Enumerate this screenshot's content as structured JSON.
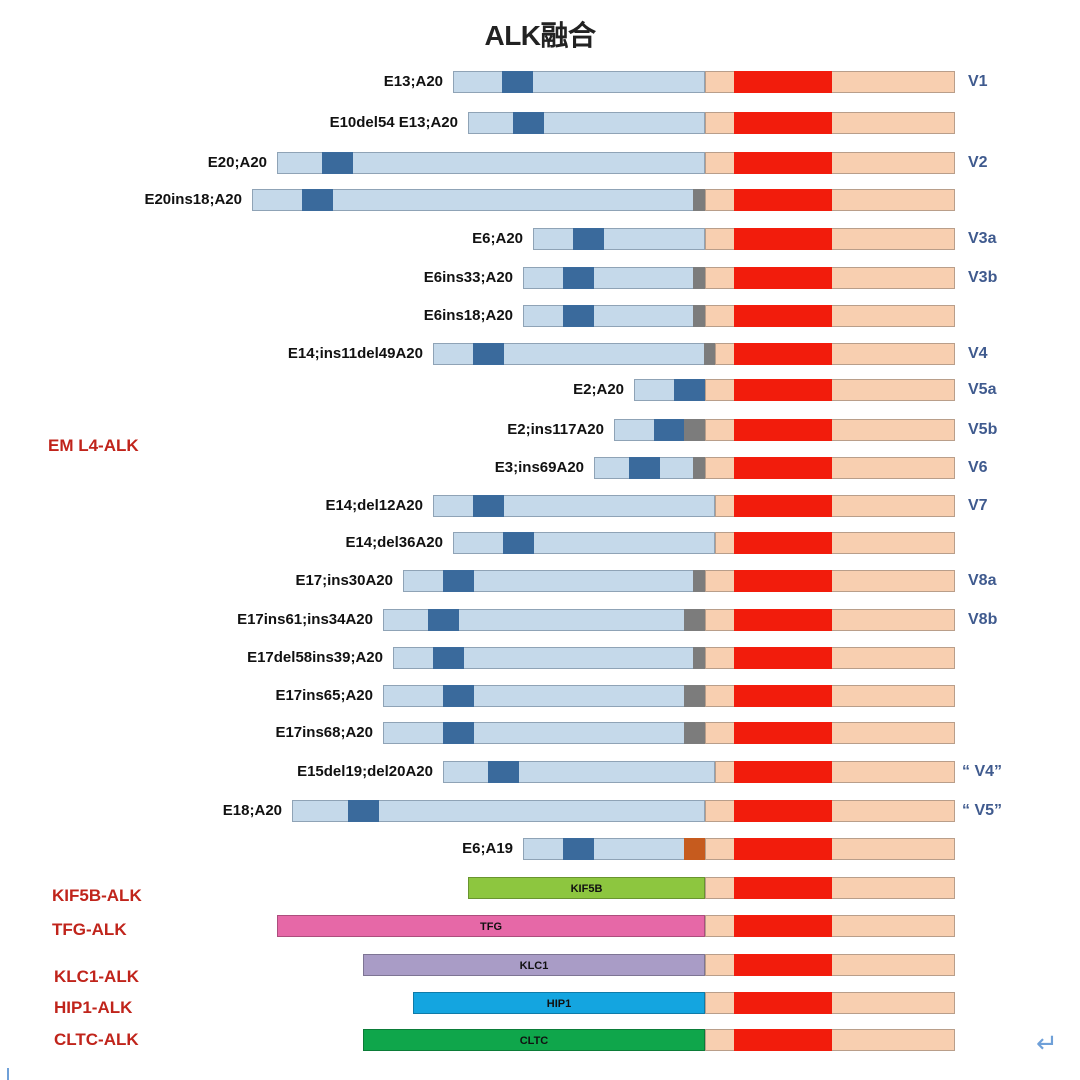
{
  "title": "ALK融合",
  "group_labels": [
    "EM L4-ALK",
    "KIF5B-ALK",
    "TFG-ALK",
    "KLC1-ALK",
    "HIP1-ALK",
    "CLTC-ALK"
  ],
  "eml4_rows": [
    {
      "label": "E13;A20",
      "variant": "V1"
    },
    {
      "label": "E10del54 E13;A20",
      "variant": ""
    },
    {
      "label": "E20;A20",
      "variant": "V2"
    },
    {
      "label": "E20ins18;A20",
      "variant": ""
    },
    {
      "label": "E6;A20",
      "variant": "V3a"
    },
    {
      "label": "E6ins33;A20",
      "variant": "V3b"
    },
    {
      "label": "E6ins18;A20",
      "variant": ""
    },
    {
      "label": "E14;ins11del49A20",
      "variant": "V4"
    },
    {
      "label": "E2;A20",
      "variant": "V5a"
    },
    {
      "label": "E2;ins117A20",
      "variant": "V5b"
    },
    {
      "label": "E3;ins69A20",
      "variant": "V6"
    },
    {
      "label": "E14;del12A20",
      "variant": "V7"
    },
    {
      "label": "E14;del36A20",
      "variant": ""
    },
    {
      "label": "E17;ins30A20",
      "variant": "V8a"
    },
    {
      "label": "E17ins61;ins34A20",
      "variant": "V8b"
    },
    {
      "label": "E17del58ins39;A20",
      "variant": ""
    },
    {
      "label": "E17ins65;A20",
      "variant": ""
    },
    {
      "label": "E17ins68;A20",
      "variant": ""
    },
    {
      "label": "E15del19;del20A20",
      "variant": "“ V4”"
    },
    {
      "label": "E18;A20",
      "variant": "“ V5”"
    },
    {
      "label": "E6;A19",
      "variant": ""
    }
  ],
  "partner_rows": [
    {
      "name": "KIF5B",
      "color": "#8dc63f"
    },
    {
      "name": "TFG",
      "color": "#e668a7"
    },
    {
      "name": "KLC1",
      "color": "#a99cc6"
    },
    {
      "name": "HIP1",
      "color": "#14a5e0"
    },
    {
      "name": "CLTC",
      "color": "#0fa64b"
    }
  ],
  "colors": {
    "eml4": "#c5d9ea",
    "eml4_domain": "#3a6a9c",
    "insertion": "#7c7c7c",
    "alk": "#f8cfb0",
    "alk_kinase": "#f21c0c",
    "group_label": "#c0241b",
    "variant_label": "#3f5a8e"
  }
}
